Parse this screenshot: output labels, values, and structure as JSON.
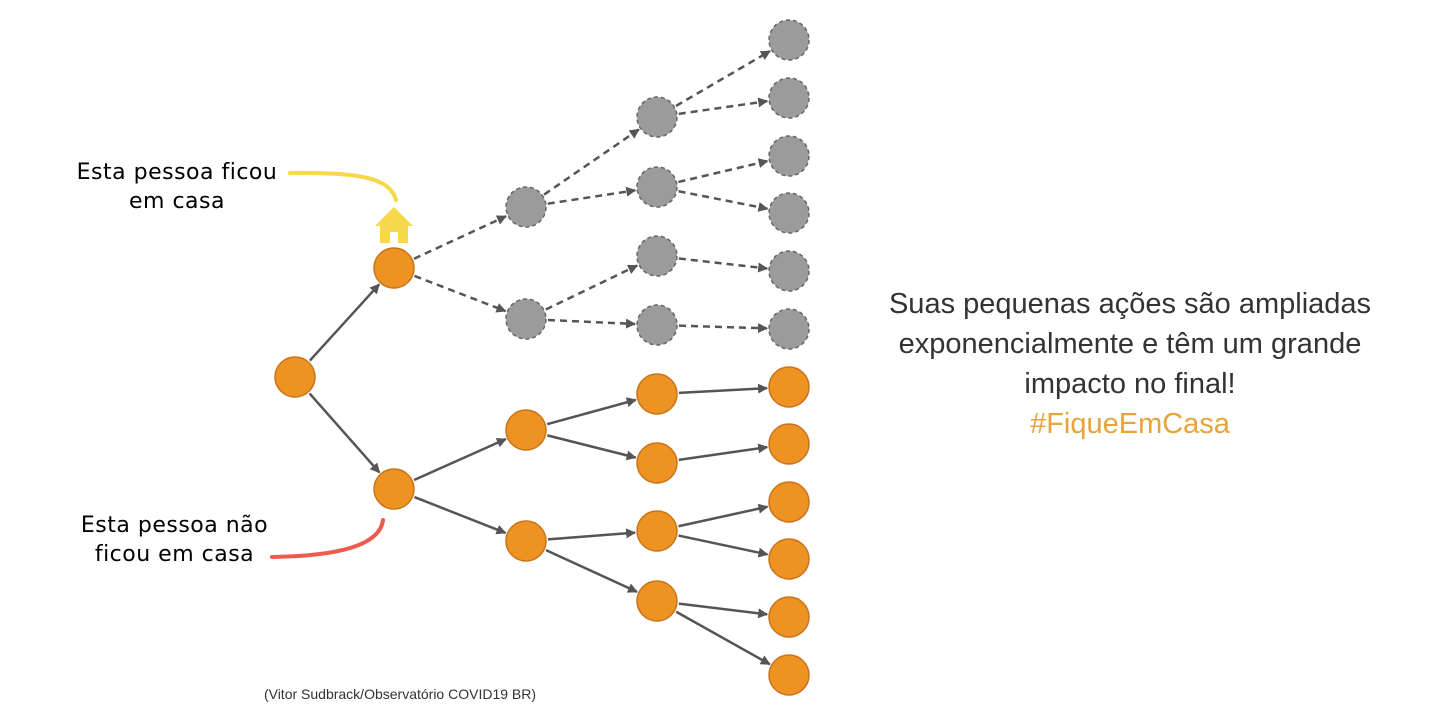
{
  "labels": {
    "stayed_home": [
      "Esta pessoa ficou",
      "em casa"
    ],
    "not_stayed_home": [
      "Esta pessoa não",
      "ficou em casa"
    ]
  },
  "message": {
    "lines": [
      "Suas pequenas ações são ampliadas",
      "exponencialmente e têm um grande",
      "impacto no final!"
    ],
    "hashtag": "#FiqueEmCasa"
  },
  "credit": "(Vitor Sudbrack/Observatório COVID19 BR)",
  "colors": {
    "orange_node": "#ee9323",
    "gray_node": "#9b9b9b",
    "edge": "#555555",
    "house_icon": "#f7d84a",
    "stayed_curve": "#f7d84a",
    "not_stayed_curve": "#ee5a4e",
    "hashtag": "#e8a33a"
  },
  "icon": "house-icon"
}
